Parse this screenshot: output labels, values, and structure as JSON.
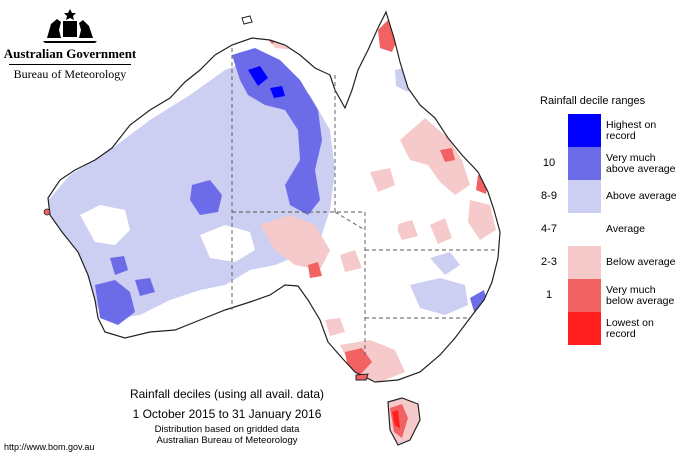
{
  "header": {
    "gov_name": "Australian Government",
    "bureau_name": "Bureau of Meteorology"
  },
  "legend": {
    "title": "Rainfall decile ranges",
    "items": [
      {
        "code": "",
        "label": "Highest on record",
        "color": "#0000ff"
      },
      {
        "code": "10",
        "label": "Very much above average",
        "color": "#6c6ce9"
      },
      {
        "code": "8-9",
        "label": "Above average",
        "color": "#cccef2"
      },
      {
        "code": "4-7",
        "label": "Average",
        "color": "#ffffff"
      },
      {
        "code": "2-3",
        "label": "Below average",
        "color": "#f6caca"
      },
      {
        "code": "1",
        "label": "Very much below average",
        "color": "#f26262"
      },
      {
        "code": "",
        "label": "Lowest on record",
        "color": "#ff1f1f"
      }
    ]
  },
  "caption": {
    "title": "Rainfall deciles (using all avail. data)",
    "date_range": "1 October 2015 to 31 January 2016",
    "note1": "Distribution based on gridded data",
    "note2": "Australian Bureau of Meteorology"
  },
  "footer": {
    "url": "http://www.bom.gov.au"
  },
  "map": {
    "land_color": "#ffffff",
    "outline_color": "#222222",
    "border_color": "#555555"
  }
}
